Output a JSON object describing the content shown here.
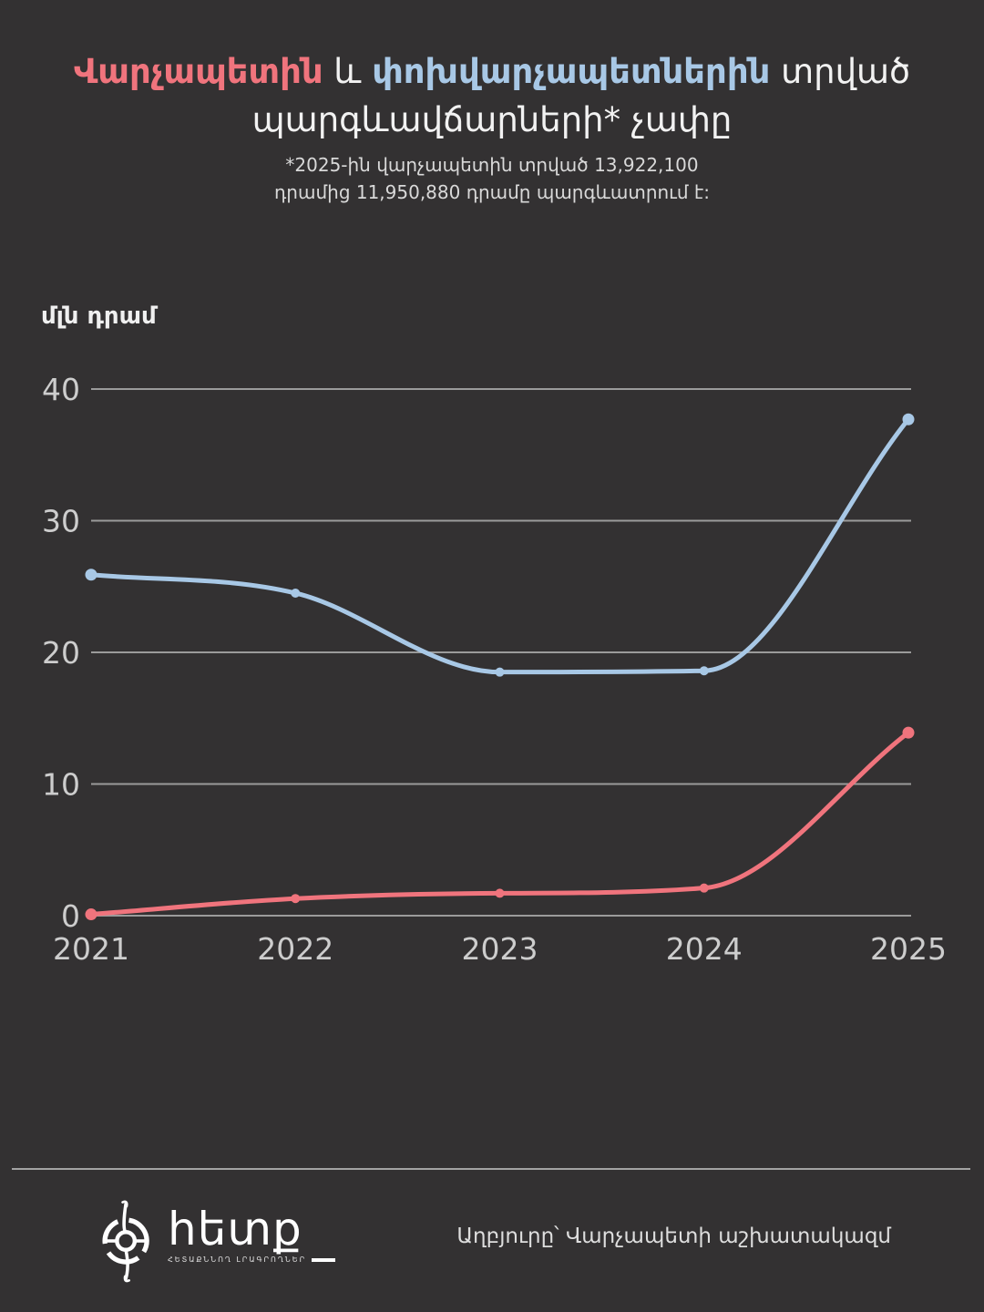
{
  "title": {
    "part1": "Վարչապետին",
    "part2": " և ",
    "part3": "փոխվարչապետներին",
    "part4": " տրված",
    "line2": "պարգևավճարների* չափը",
    "color_pm": "#f0747d",
    "color_deputies": "#a8c8e6"
  },
  "subtitle": {
    "line1": "*2025-ին վարչապետին տրված 13,922,100",
    "line2": "դրամից 11,950,880 դրամը պարգևատրում է:"
  },
  "chart_data": {
    "type": "line",
    "title": "Վարչապետին և փոխվարչապետներին տրված պարգևավճարների չափը",
    "ylabel": "մլն դրամ",
    "xlabel": "",
    "x": [
      "2021",
      "2022",
      "2023",
      "2024",
      "2025"
    ],
    "series": [
      {
        "name": "Վարչապետ",
        "color": "#f0747d",
        "values": [
          0.1,
          1.3,
          1.7,
          2.1,
          13.9
        ]
      },
      {
        "name": "Փոխվարչապետներ",
        "color": "#a8c8e6",
        "values": [
          25.9,
          24.5,
          18.5,
          18.6,
          37.7
        ]
      }
    ],
    "ylim": [
      0,
      40
    ],
    "yticks": [
      0,
      10,
      20,
      30,
      40
    ],
    "grid": true,
    "legend_position": "none",
    "grid_color": "#9b9b9b",
    "tick_label_color": "#cdcdcd"
  },
  "footer": {
    "logo_text": "հետք",
    "logo_tagline": "ՀԵՏԱՔՆՆՈՂ ԼՐԱԳՐՈՂՆԵՐ",
    "source": "Աղբյուրը՝ Վարչապետի աշխատակազմ"
  }
}
